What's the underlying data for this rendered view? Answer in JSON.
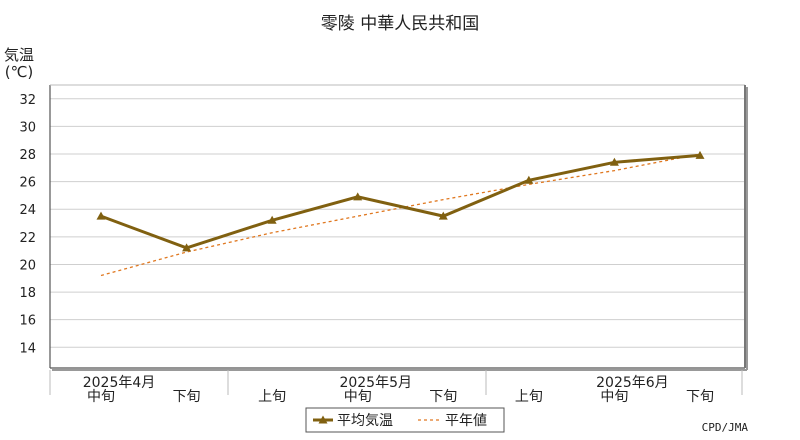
{
  "chart_data": {
    "type": "line",
    "title": "零陵 中華人民共和国",
    "ylabel_line1": "気温",
    "ylabel_line2": "(℃)",
    "ylim": [
      12.5,
      33
    ],
    "yticks": [
      14,
      16,
      18,
      20,
      22,
      24,
      26,
      28,
      30,
      32
    ],
    "grid": true,
    "categories": [
      "中旬",
      "下旬",
      "上旬",
      "中旬",
      "下旬",
      "上旬",
      "中旬",
      "下旬"
    ],
    "month_labels": [
      {
        "text": "2025年4月",
        "at_index": 0
      },
      {
        "text": "2025年5月",
        "at_index": 3
      },
      {
        "text": "2025年6月",
        "at_index": 6
      }
    ],
    "series": [
      {
        "name": "平均気温",
        "values": [
          23.5,
          21.2,
          23.2,
          24.9,
          23.5,
          26.1,
          27.4,
          27.9
        ],
        "color": "#806010",
        "style": "solid",
        "marker": "triangle"
      },
      {
        "name": "平年値",
        "values": [
          19.2,
          20.9,
          22.3,
          23.5,
          24.7,
          25.8,
          26.8,
          28.0
        ],
        "color": "#e07820",
        "style": "dashed"
      }
    ],
    "legend_position": "bottom-center",
    "credit": "CPD/JMA"
  }
}
